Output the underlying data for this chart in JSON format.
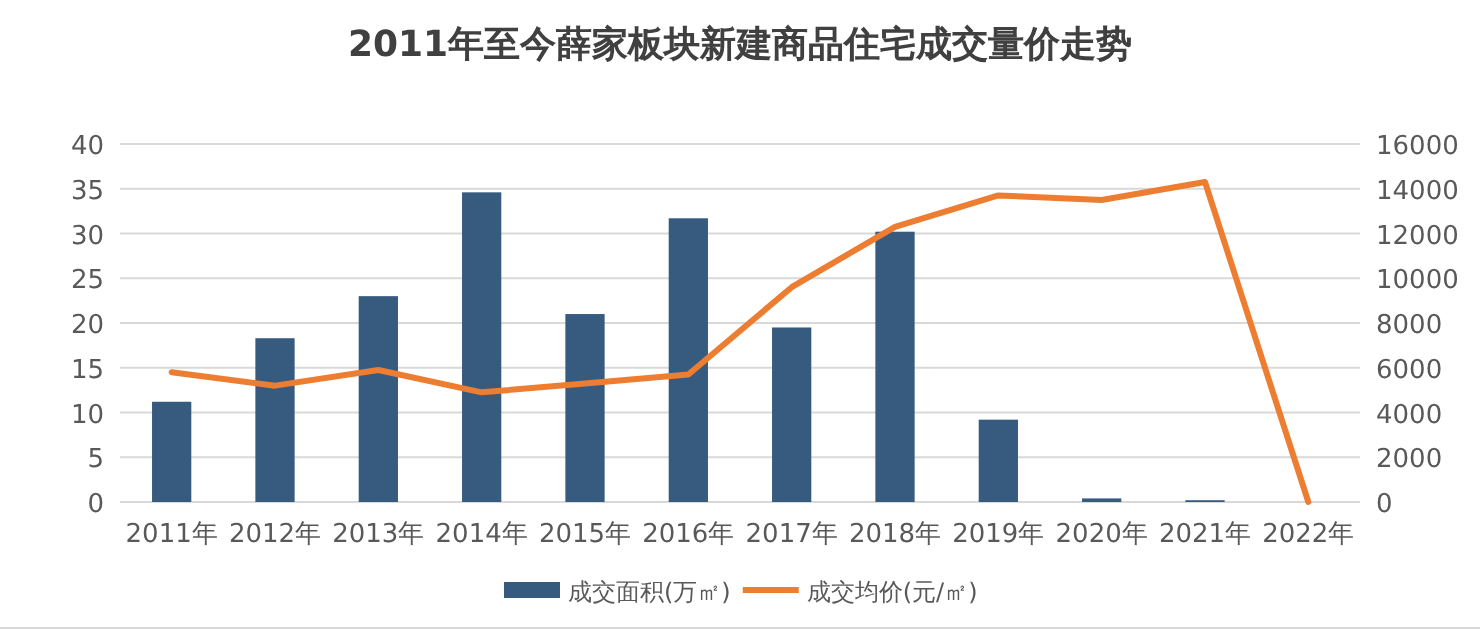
{
  "chart_data": {
    "type": "bar",
    "title": "2011年至今薛家板块新建商品住宅成交量价走势",
    "categories": [
      "2011年",
      "2012年",
      "2013年",
      "2014年",
      "2015年",
      "2016年",
      "2017年",
      "2018年",
      "2019年",
      "2020年",
      "2021年",
      "2022年"
    ],
    "series": [
      {
        "name": "成交面积(万㎡)",
        "color": "#375a7f",
        "values": [
          11.2,
          18.3,
          23,
          34.6,
          21,
          31.7,
          19.5,
          30.2,
          9.2,
          0.4,
          0.2,
          null
        ]
      },
      {
        "name": "成交均价(元/㎡)",
        "color": "#ed7d31",
        "type": "line",
        "axis": "y2",
        "values": [
          5800,
          5200,
          5900,
          4900,
          5300,
          5700,
          9600,
          12300,
          13700,
          13500,
          14300,
          0
        ]
      }
    ],
    "ylim": [
      0,
      40
    ],
    "yticks": [
      0,
      5,
      10,
      15,
      20,
      25,
      30,
      35,
      40
    ],
    "y2lim": [
      0,
      16000
    ],
    "y2ticks": [
      0,
      2000,
      4000,
      6000,
      8000,
      10000,
      12000,
      14000,
      16000
    ],
    "grid": "y",
    "legend": "bottom"
  }
}
